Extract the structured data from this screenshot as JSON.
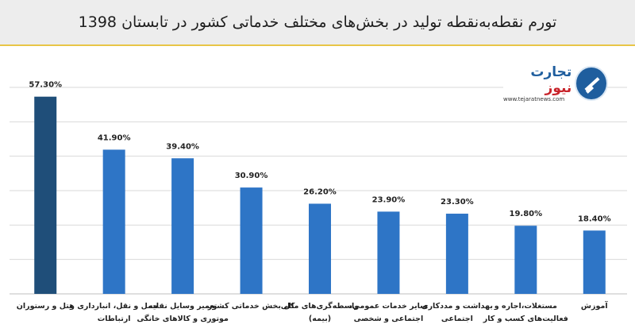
{
  "title": "تورم نقطه‌به‌نقطه تولید در بخش‌های مختلف خدماتی کشور در تابستان 1398",
  "logo": {
    "name_part1": "تجارت",
    "name_part2": "نیوز",
    "url": "www.tejaratnews.com",
    "icon": "tejaratnews-logo-icon"
  },
  "colors": {
    "title_bg": "#ededed",
    "title_border": "#e8c547",
    "bar_highlight": "#1f4e79",
    "bar_default": "#2e75c6",
    "gridline": "#d9d9d9"
  },
  "chart_data": {
    "type": "bar",
    "title": "تورم نقطه‌به‌نقطه تولید در بخش‌های مختلف خدماتی کشور در تابستان 1398",
    "categories": [
      [
        "هتل و رستوران"
      ],
      [
        "حمل و نقل، انبارداری و",
        "ارتباطات"
      ],
      [
        "تعمیر وسایل نقلیه",
        "موتوری و کالاهای خانگی"
      ],
      [
        "کل بخش خدماتی کشور"
      ],
      [
        "واسطه‌گری‌های مالی",
        "(بیمه)"
      ],
      [
        "سایر خدمات عمومی،",
        "اجتماعی و شخصی"
      ],
      [
        "بهداشت و مددکاری",
        "اجتماعی"
      ],
      [
        "مستغلات،اجاره و",
        "فعالیت‌های کسب و کار"
      ],
      [
        "آموزش"
      ]
    ],
    "values": [
      57.3,
      41.9,
      39.4,
      30.9,
      26.2,
      23.9,
      23.3,
      19.8,
      18.4
    ],
    "data_labels": [
      "57.30%",
      "41.90%",
      "39.40%",
      "30.90%",
      "26.20%",
      "23.90%",
      "23.30%",
      "19.80%",
      "18.40%"
    ],
    "highlight_index": 0,
    "ylim": [
      0,
      60
    ],
    "grid": true,
    "xlabel": "",
    "ylabel": ""
  }
}
